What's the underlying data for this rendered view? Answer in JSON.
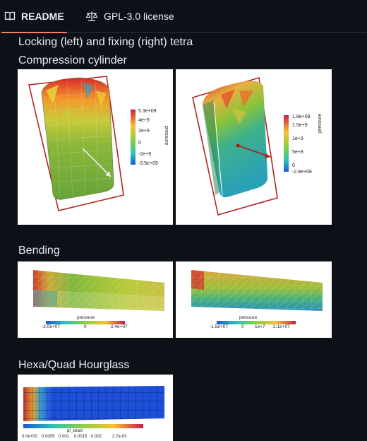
{
  "tabs": {
    "readme": "README",
    "license": "GPL-3.0 license"
  },
  "headings": {
    "locking": "Locking (left) and fixing (right) tetra",
    "compression": "Compression cylinder",
    "bending": "Bending",
    "hourglass": "Hexa/Quad Hourglass"
  },
  "figures": {
    "cyl_left": {
      "title": "pressure",
      "ticks": [
        "5.3e+09",
        "4e+9",
        "2e+9",
        "0",
        "-2e+9",
        "-3.5e+09"
      ]
    },
    "cyl_right": {
      "title": "pressure",
      "ticks": [
        "1.8e+09",
        "1.5e+9",
        "1e+9",
        "5e+8",
        "0",
        "-2.8e+08"
      ]
    },
    "bend_left": {
      "title": "pressure",
      "ticks": [
        "-2.0e+07",
        "0",
        "2.4e+07"
      ]
    },
    "bend_right": {
      "title": "pressure",
      "ticks": [
        "-1.5e+07",
        "0",
        "1e+7",
        "2.1e+07"
      ]
    },
    "hourglass": {
      "title": "pl_strain",
      "ticks": [
        "0.0e+00",
        "0.0005",
        "0.001",
        "0.0015",
        "0.002",
        "2.7e-03"
      ]
    }
  },
  "colors": {
    "accent": "#f78166",
    "bg": "#0d1117",
    "border": "#30363d"
  }
}
